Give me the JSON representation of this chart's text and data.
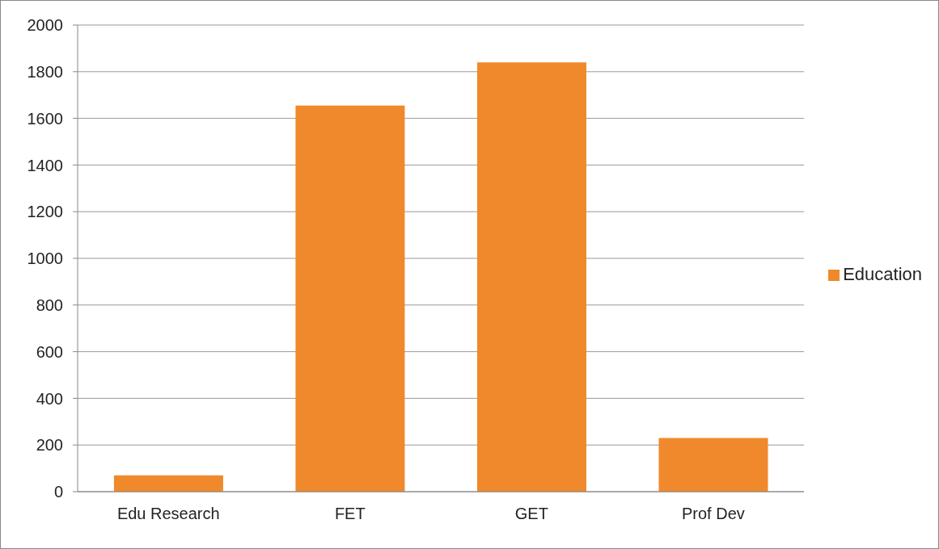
{
  "chart_data": {
    "type": "bar",
    "categories": [
      "Edu Research",
      "FET",
      "GET",
      "Prof Dev"
    ],
    "series": [
      {
        "name": "Education",
        "color": "#f0892b",
        "values": [
          70,
          1655,
          1840,
          230
        ]
      }
    ],
    "ylim": [
      0,
      2000
    ],
    "yticks": [
      0,
      200,
      400,
      600,
      800,
      1000,
      1200,
      1400,
      1600,
      1800,
      2000
    ],
    "grid": "y",
    "legend": "right"
  }
}
